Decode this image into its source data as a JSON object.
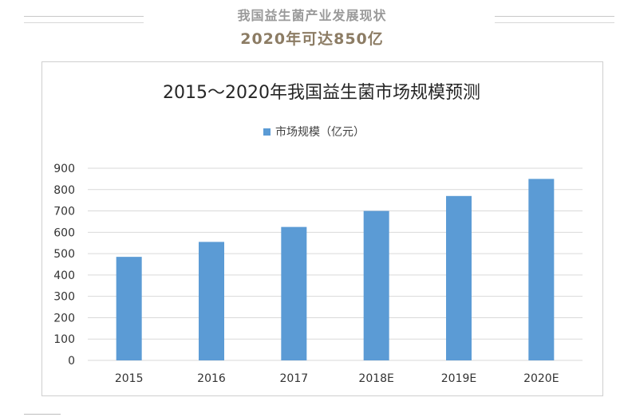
{
  "header": {
    "title": "我国益生菌产业发展现状",
    "subtitle": "2020年可达850亿"
  },
  "colors": {
    "bar": "#5b9bd5",
    "grid": "#d9d9d9",
    "text": "#333333",
    "title": "#262626"
  },
  "chart_data": {
    "type": "bar",
    "title": "2015～2020年我国益生菌市场规模预测",
    "legend": "top",
    "grid": true,
    "series": [
      {
        "name": "市场规模（亿元）",
        "values": [
          485,
          555,
          625,
          700,
          770,
          850
        ]
      }
    ],
    "categories": [
      "2015",
      "2016",
      "2017",
      "2018E",
      "2019E",
      "2020E"
    ],
    "yticks": [
      0,
      100,
      200,
      300,
      400,
      500,
      600,
      700,
      800,
      900
    ],
    "ylim": [
      0,
      900
    ]
  }
}
